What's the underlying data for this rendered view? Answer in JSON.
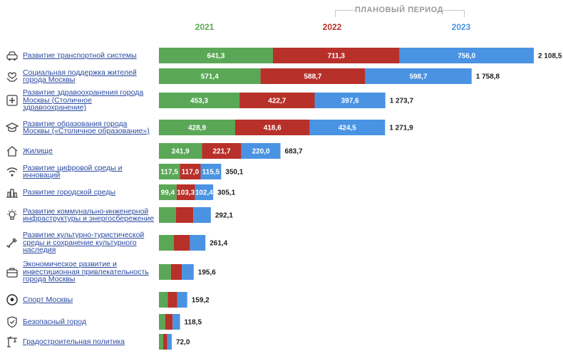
{
  "chart_data": {
    "type": "bar",
    "stacked": true,
    "orientation": "horizontal",
    "header": "ПЛАНОВЫЙ ПЕРИОД",
    "series": [
      {
        "name": "2021",
        "color": "#5aa857"
      },
      {
        "name": "2022",
        "color": "#b8302a"
      },
      {
        "name": "2023",
        "color": "#4a93e3"
      }
    ],
    "rows": [
      {
        "label": "Развитие транспортной системы",
        "icon": "car-icon",
        "values": [
          641.3,
          711.3,
          756.0
        ],
        "value_labels": [
          "641,3",
          "711,3",
          "756,0"
        ],
        "total": "2 108,5"
      },
      {
        "label": "Социальная поддержка жителей города Москвы",
        "icon": "hands-heart-icon",
        "values": [
          571.4,
          588.7,
          598.7
        ],
        "value_labels": [
          "571,4",
          "588,7",
          "598,7"
        ],
        "total": "1 758,8"
      },
      {
        "label": "Развитие здравоохранения города Москвы (Столичное здравоохранение)",
        "icon": "medical-cross-icon",
        "values": [
          453.3,
          422.7,
          397.6
        ],
        "value_labels": [
          "453,3",
          "422,7",
          "397,6"
        ],
        "total": "1 273,7"
      },
      {
        "label": "Развитие образования города Москвы («Столичное образование»)",
        "icon": "graduation-cap-icon",
        "values": [
          428.9,
          418.6,
          424.5
        ],
        "value_labels": [
          "428,9",
          "418,6",
          "424,5"
        ],
        "total": "1 271,9"
      },
      {
        "label": "Жилище",
        "icon": "house-icon",
        "values": [
          241.9,
          221.7,
          220.0
        ],
        "value_labels": [
          "241,9",
          "221,7",
          "220,0"
        ],
        "total": "683,7"
      },
      {
        "label": "Развитие цифровой среды и инноваций",
        "icon": "wifi-icon",
        "values": [
          117.5,
          117.0,
          115.5
        ],
        "value_labels": [
          "117,5",
          "117,0",
          "115,5"
        ],
        "total": "350,1"
      },
      {
        "label": "Развитие городской среды",
        "icon": "cityscape-icon",
        "values": [
          99.4,
          103.3,
          102.4
        ],
        "value_labels": [
          "99,4",
          "103,3",
          "102,4"
        ],
        "total": "305,1"
      },
      {
        "label": "Развитие коммунально-инженерной инфраструктуры и энергосбережение",
        "icon": "lightbulb-icon",
        "values": [
          95.7,
          97.8,
          98.6
        ],
        "value_labels": [
          "",
          "",
          ""
        ],
        "total": "292,1"
      },
      {
        "label": "Развитие культурно-туристической среды и сохранение культурного наследия",
        "icon": "palette-icon",
        "values": [
          83.0,
          91.0,
          87.4
        ],
        "value_labels": [
          "",
          "",
          ""
        ],
        "total": "261,4"
      },
      {
        "label": "Экономическое развитие и инвестиционная привлекательность города Москвы",
        "icon": "briefcase-icon",
        "values": [
          67.4,
          61.6,
          66.6
        ],
        "value_labels": [
          "",
          "",
          ""
        ],
        "total": "195,6"
      },
      {
        "label": "Спорт Москвы",
        "icon": "soccer-ball-icon",
        "values": [
          49.2,
          54.2,
          55.8
        ],
        "value_labels": [
          "",
          "",
          ""
        ],
        "total": "159,2"
      },
      {
        "label": "Безопасный город",
        "icon": "shield-icon",
        "values": [
          35.0,
          42.1,
          41.4
        ],
        "value_labels": [
          "",
          "",
          ""
        ],
        "total": "118,5"
      },
      {
        "label": "Градостроительная политика",
        "icon": "crane-icon",
        "values": [
          23.5,
          23.8,
          24.7
        ],
        "value_labels": [
          "",
          "",
          ""
        ],
        "total": "72,0"
      }
    ]
  }
}
